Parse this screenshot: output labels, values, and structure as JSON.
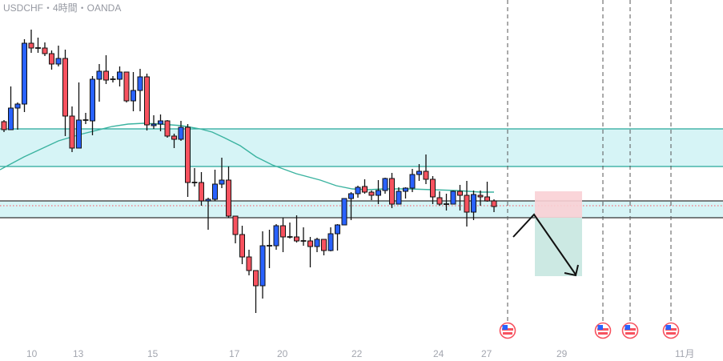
{
  "header": {
    "title": "USDCHF・4時間・OANDA"
  },
  "colors": {
    "up": "#2962ff",
    "down": "#f7525f",
    "zone": "#d6f4f6",
    "zone_line": "#26a69a",
    "ma": "#3bb3a0",
    "risk": "#f9d0d5",
    "reward": "#cce9e3"
  },
  "x_axis": {
    "labels": [
      "10",
      "13",
      "15",
      "17",
      "20",
      "22",
      "24",
      "27",
      "29",
      "11月"
    ]
  },
  "events": [
    {
      "icon": "us-flag-icon"
    },
    {
      "icon": "us-flag-icon"
    },
    {
      "icon": "us-flag-icon"
    },
    {
      "icon": "us-flag-icon"
    }
  ],
  "chart_data": {
    "type": "candlestick",
    "title": "USDCHF・4時間・OANDA",
    "note": "OHLC in relative price units (no price axis visible)",
    "candles": [
      [
        248,
        250,
        235,
        238
      ],
      [
        238,
        292,
        238,
        265
      ],
      [
        265,
        272,
        238,
        270
      ],
      [
        270,
        351,
        260,
        346
      ],
      [
        346,
        363,
        334,
        340
      ],
      [
        340,
        353,
        334,
        340
      ],
      [
        340,
        347,
        330,
        333
      ],
      [
        333,
        337,
        313,
        320
      ],
      [
        320,
        343,
        317,
        327
      ],
      [
        327,
        338,
        230,
        255
      ],
      [
        255,
        267,
        210,
        215
      ],
      [
        215,
        297,
        215,
        250
      ],
      [
        250,
        259,
        245,
        249
      ],
      [
        249,
        305,
        231,
        301
      ],
      [
        301,
        320,
        273,
        311
      ],
      [
        311,
        331,
        295,
        300
      ],
      [
        300,
        305,
        297,
        301
      ],
      [
        301,
        317,
        292,
        310
      ],
      [
        310,
        310,
        272,
        274
      ],
      [
        274,
        310,
        261,
        287
      ],
      [
        287,
        314,
        261,
        304
      ],
      [
        304,
        308,
        237,
        244
      ],
      [
        243,
        256,
        239,
        245
      ],
      [
        245,
        257,
        236,
        249
      ],
      [
        249,
        250,
        228,
        230
      ],
      [
        230,
        233,
        215,
        226
      ],
      [
        226,
        249,
        224,
        241
      ],
      [
        241,
        245,
        154,
        172
      ],
      [
        172,
        190,
        167,
        172
      ],
      [
        172,
        185,
        143,
        149
      ],
      [
        149,
        153,
        113,
        151
      ],
      [
        151,
        188,
        149,
        170
      ],
      [
        170,
        203,
        165,
        175
      ],
      [
        175,
        192,
        128,
        130
      ],
      [
        130,
        130,
        96,
        107
      ],
      [
        107,
        118,
        70,
        79
      ],
      [
        79,
        88,
        56,
        62
      ],
      [
        62,
        62,
        9,
        43
      ],
      [
        43,
        111,
        27,
        93
      ],
      [
        93,
        113,
        65,
        93
      ],
      [
        93,
        120,
        88,
        118
      ],
      [
        118,
        128,
        85,
        104
      ],
      [
        104,
        122,
        102,
        104
      ],
      [
        104,
        131,
        97,
        99
      ],
      [
        99,
        116,
        93,
        99
      ],
      [
        99,
        104,
        66,
        92
      ],
      [
        92,
        103,
        85,
        101
      ],
      [
        101,
        101,
        81,
        87
      ],
      [
        87,
        116,
        86,
        108
      ],
      [
        108,
        120,
        87,
        119
      ],
      [
        119,
        152,
        119,
        152
      ],
      [
        152,
        160,
        125,
        158
      ],
      [
        158,
        168,
        153,
        166
      ],
      [
        167,
        176,
        158,
        160
      ],
      [
        160,
        162,
        150,
        156
      ],
      [
        156,
        175,
        145,
        162
      ],
      [
        162,
        178,
        158,
        177
      ],
      [
        177,
        184,
        140,
        145
      ],
      [
        145,
        166,
        145,
        161
      ],
      [
        161,
        166,
        152,
        165
      ],
      [
        165,
        189,
        160,
        182
      ],
      [
        182,
        195,
        174,
        186
      ],
      [
        186,
        207,
        170,
        176
      ],
      [
        176,
        180,
        145,
        154
      ],
      [
        153,
        161,
        143,
        145
      ],
      [
        145,
        158,
        137,
        145
      ],
      [
        145,
        162,
        145,
        161
      ],
      [
        161,
        169,
        137,
        156
      ],
      [
        156,
        174,
        117,
        135
      ],
      [
        135,
        162,
        125,
        157
      ],
      [
        156,
        162,
        143,
        154
      ],
      [
        154,
        173,
        148,
        149
      ],
      [
        149,
        151,
        135,
        142
      ]
    ],
    "zones": [
      {
        "top": 239,
        "bottom": 192
      },
      {
        "top": 149,
        "bottom": 128
      }
    ],
    "position": {
      "type": "short",
      "entry": 128,
      "stop": 161,
      "target": 55
    }
  }
}
